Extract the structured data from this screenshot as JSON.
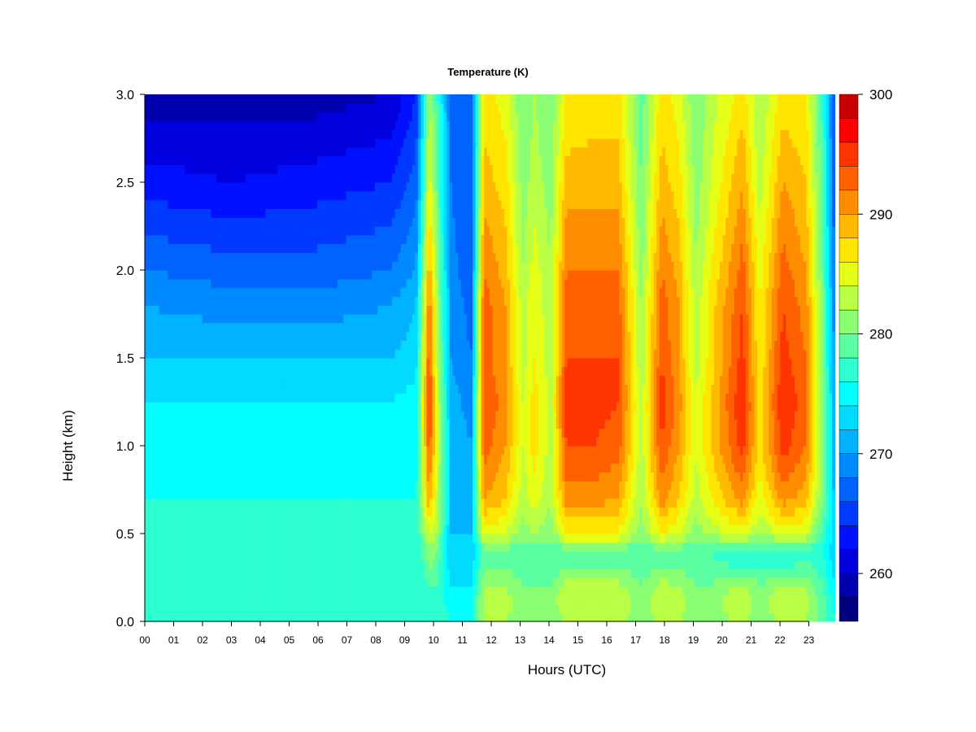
{
  "chart_data": {
    "type": "heatmap",
    "title": "Temperature (K)",
    "xlabel": "Hours (UTC)",
    "ylabel": "Height (km)",
    "x_ticks": [
      "00",
      "01",
      "02",
      "03",
      "04",
      "05",
      "06",
      "07",
      "08",
      "09",
      "10",
      "11",
      "12",
      "13",
      "14",
      "15",
      "16",
      "17",
      "18",
      "19",
      "20",
      "21",
      "22",
      "23"
    ],
    "x_range_hours": [
      0,
      23.9
    ],
    "ylim": [
      0,
      3.0
    ],
    "y_ticks": [
      "0.0",
      "0.5",
      "1.0",
      "1.5",
      "2.0",
      "2.5",
      "3.0"
    ],
    "colorbar": {
      "label_values": [
        "260",
        "270",
        "280",
        "290",
        "300"
      ],
      "range": [
        256,
        300
      ],
      "levels": [
        256,
        258,
        260,
        262,
        264,
        266,
        268,
        270,
        272,
        274,
        276,
        278,
        280,
        282,
        284,
        286,
        288,
        290,
        292,
        294,
        296,
        298,
        300
      ],
      "colors": [
        "#00007f",
        "#0000ae",
        "#0000de",
        "#0011ff",
        "#0039ff",
        "#0062ff",
        "#008aff",
        "#00b2ff",
        "#00dbff",
        "#00ffff",
        "#2dffd0",
        "#5bffa2",
        "#8aff73",
        "#b8ff45",
        "#e6ff16",
        "#ffe500",
        "#ffb900",
        "#ff8d00",
        "#ff6100",
        "#ff3400",
        "#ff0000",
        "#c80000",
        "#8f0000"
      ]
    },
    "height_km": [
      0.0,
      0.1,
      0.2,
      0.3,
      0.4,
      0.5,
      0.7,
      1.0,
      1.25,
      1.5,
      1.8,
      2.0,
      2.5,
      3.0
    ],
    "profiles": [
      {
        "hour": 0.0,
        "temps": [
          278,
          277,
          276,
          276,
          276,
          276,
          276,
          275,
          274,
          272,
          270,
          268,
          263,
          259
        ]
      },
      {
        "hour": 3.0,
        "temps": [
          278,
          277,
          276,
          276,
          276,
          276,
          276,
          275,
          274,
          272,
          269,
          267,
          262,
          259
        ]
      },
      {
        "hour": 6.0,
        "temps": [
          278,
          277,
          276,
          276,
          276,
          276,
          276,
          275,
          274,
          272,
          269,
          267,
          263,
          259
        ]
      },
      {
        "hour": 8.5,
        "temps": [
          278,
          277,
          277,
          276,
          276,
          276,
          276,
          275,
          274,
          272,
          270,
          268,
          264,
          260
        ]
      },
      {
        "hour": 9.4,
        "temps": [
          278,
          277,
          277,
          276,
          276,
          276,
          276,
          275,
          275,
          273,
          272,
          270,
          267,
          264
        ]
      },
      {
        "hour": 9.85,
        "temps": [
          278,
          277,
          278,
          280,
          281,
          284,
          290,
          294,
          295,
          294,
          292,
          290,
          285,
          282
        ]
      },
      {
        "hour": 10.1,
        "temps": [
          278,
          277,
          278,
          279,
          280,
          282,
          284,
          285,
          285,
          284,
          283,
          282,
          280,
          278
        ]
      },
      {
        "hour": 10.6,
        "temps": [
          276,
          275,
          274,
          273,
          272,
          272,
          272,
          272,
          271,
          270,
          270,
          269,
          268,
          268
        ]
      },
      {
        "hour": 11.3,
        "temps": [
          276,
          275,
          274,
          273,
          272,
          272,
          271,
          270,
          269,
          268,
          267,
          266,
          266,
          266
        ]
      },
      {
        "hour": 11.75,
        "temps": [
          282,
          283,
          282,
          280,
          279,
          285,
          290,
          293,
          294,
          293,
          293,
          292,
          289,
          287
        ]
      },
      {
        "hour": 12.5,
        "temps": [
          282,
          283,
          282,
          280,
          279,
          284,
          288,
          290,
          291,
          290,
          290,
          289,
          287,
          285
        ]
      },
      {
        "hour": 13.1,
        "temps": [
          280,
          281,
          280,
          279,
          278,
          281,
          283,
          284,
          284,
          283,
          283,
          282,
          281,
          280
        ]
      },
      {
        "hour": 13.5,
        "temps": [
          280,
          281,
          280,
          279,
          278,
          282,
          285,
          287,
          287,
          286,
          286,
          285,
          283,
          282
        ]
      },
      {
        "hour": 14.05,
        "temps": [
          280,
          281,
          280,
          279,
          278,
          281,
          282,
          283,
          283,
          283,
          282,
          282,
          281,
          280
        ]
      },
      {
        "hour": 14.6,
        "temps": [
          282,
          284,
          283,
          280,
          279,
          286,
          291,
          294,
          295,
          294,
          293,
          292,
          289,
          286
        ]
      },
      {
        "hour": 15.5,
        "temps": [
          283,
          284,
          283,
          280,
          279,
          286,
          291,
          294,
          295,
          294,
          293,
          292,
          289,
          287
        ]
      },
      {
        "hour": 16.4,
        "temps": [
          283,
          284,
          283,
          280,
          279,
          286,
          290,
          293,
          294,
          294,
          293,
          292,
          289,
          287
        ]
      },
      {
        "hour": 17.2,
        "temps": [
          280,
          281,
          280,
          279,
          278,
          281,
          282,
          283,
          283,
          282,
          282,
          281,
          280,
          279
        ]
      },
      {
        "hour": 17.9,
        "temps": [
          283,
          284,
          283,
          280,
          279,
          286,
          291,
          294,
          295,
          294,
          293,
          292,
          289,
          287
        ]
      },
      {
        "hour": 18.5,
        "temps": [
          282,
          283,
          282,
          280,
          279,
          284,
          288,
          290,
          291,
          290,
          290,
          289,
          287,
          285
        ]
      },
      {
        "hour": 19.1,
        "temps": [
          280,
          281,
          280,
          279,
          278,
          281,
          283,
          284,
          284,
          283,
          283,
          282,
          281,
          280
        ]
      },
      {
        "hour": 19.6,
        "temps": [
          280,
          281,
          280,
          279,
          278,
          283,
          286,
          288,
          288,
          287,
          287,
          286,
          284,
          283
        ]
      },
      {
        "hour": 20.7,
        "temps": [
          283,
          284,
          283,
          278,
          276,
          285,
          291,
          295,
          296,
          295,
          294,
          293,
          290,
          287
        ]
      },
      {
        "hour": 21.3,
        "temps": [
          280,
          281,
          280,
          278,
          277,
          282,
          285,
          287,
          287,
          286,
          286,
          285,
          283,
          282
        ]
      },
      {
        "hour": 22.1,
        "temps": [
          283,
          284,
          283,
          278,
          276,
          285,
          291,
          295,
          296,
          295,
          294,
          293,
          290,
          287
        ]
      },
      {
        "hour": 22.9,
        "temps": [
          282,
          283,
          282,
          279,
          277,
          284,
          289,
          292,
          293,
          292,
          291,
          290,
          288,
          286
        ]
      },
      {
        "hour": 23.5,
        "temps": [
          279,
          279,
          278,
          277,
          276,
          278,
          280,
          281,
          281,
          280,
          280,
          279,
          278,
          277
        ]
      },
      {
        "hour": 23.9,
        "temps": [
          276,
          275,
          274,
          273,
          272,
          272,
          271,
          270,
          270,
          269,
          268,
          267,
          266,
          265
        ]
      }
    ]
  }
}
